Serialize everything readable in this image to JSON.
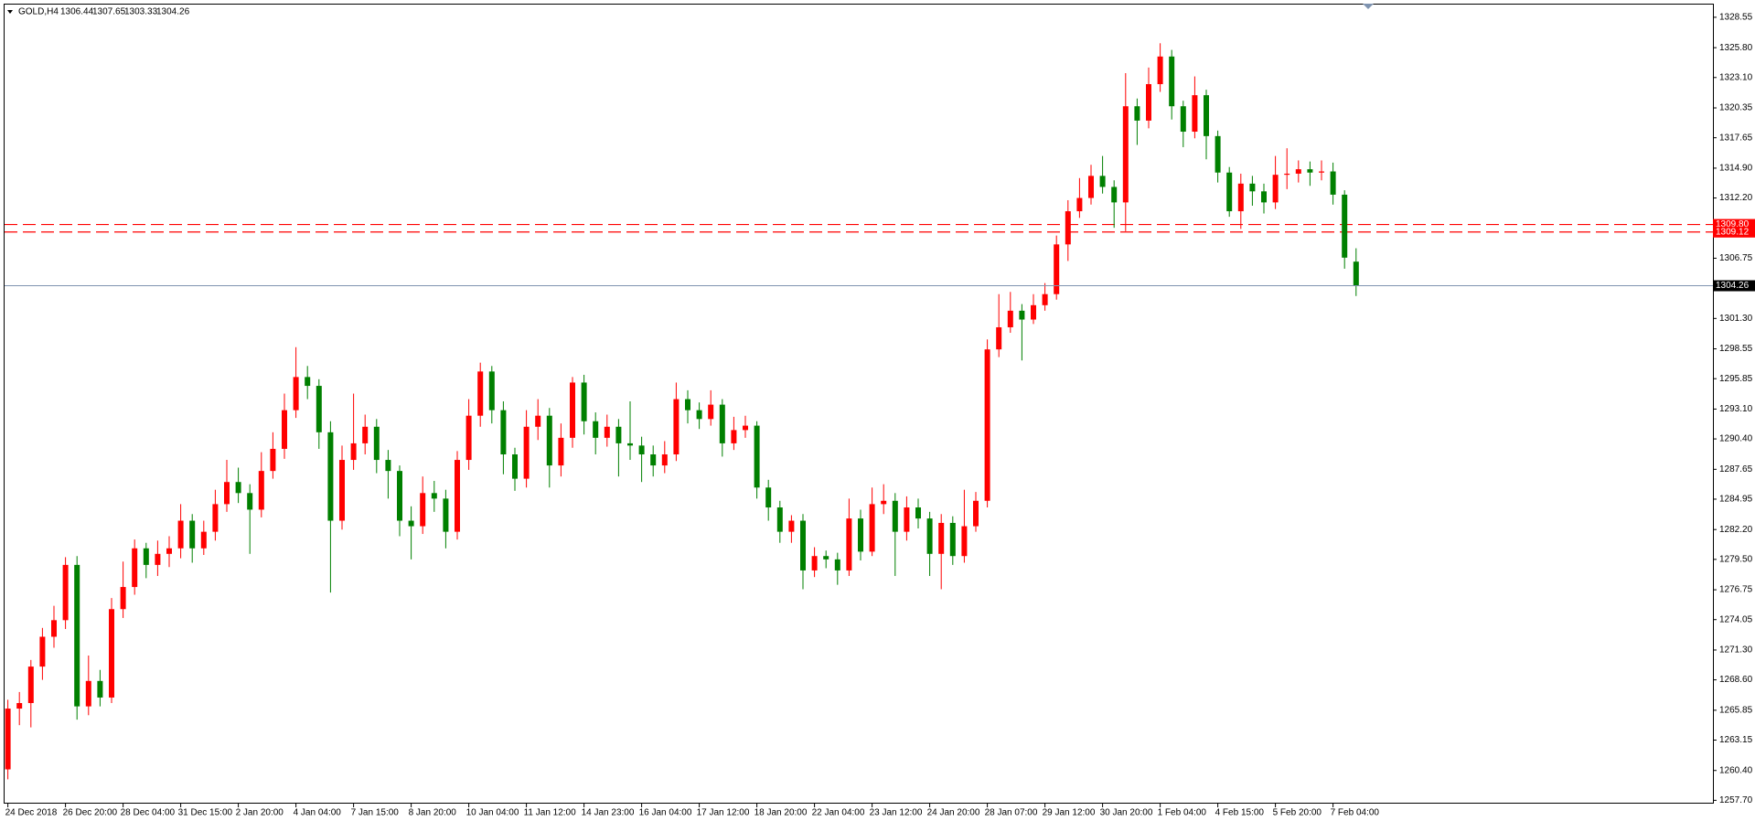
{
  "chart_data": {
    "type": "candlestick",
    "title": "GOLD,H4",
    "categories": [
      "24 Dec 2018",
      null,
      null,
      null,
      null,
      "26 Dec 20:00",
      null,
      null,
      null,
      null,
      "28 Dec 04:00",
      null,
      null,
      null,
      null,
      "31 Dec 15:00",
      null,
      null,
      null,
      null,
      "2 Jan 20:00",
      null,
      null,
      null,
      null,
      "4 Jan 04:00",
      null,
      null,
      null,
      null,
      "7 Jan 15:00",
      null,
      null,
      null,
      null,
      "8 Jan 20:00",
      null,
      null,
      null,
      null,
      "10 Jan 04:00",
      null,
      null,
      null,
      null,
      "11 Jan 12:00",
      null,
      null,
      null,
      null,
      "14 Jan 23:00",
      null,
      null,
      null,
      null,
      "16 Jan 04:00",
      null,
      null,
      null,
      null,
      "17 Jan 12:00",
      null,
      null,
      null,
      null,
      "18 Jan 20:00",
      null,
      null,
      null,
      null,
      "22 Jan 04:00",
      null,
      null,
      null,
      null,
      "23 Jan 12:00",
      null,
      null,
      null,
      null,
      "24 Jan 20:00",
      null,
      null,
      null,
      null,
      "28 Jan 07:00",
      null,
      null,
      null,
      null,
      "29 Jan 12:00",
      null,
      null,
      null,
      null,
      "30 Jan 20:00",
      null,
      null,
      null,
      null,
      "1 Feb 04:00",
      null,
      null,
      null,
      null,
      "4 Feb 15:00",
      null,
      null,
      null,
      null,
      "5 Feb 20:00",
      null,
      null,
      null,
      null,
      "7 Feb 04:00",
      null,
      null
    ],
    "open": [
      1260.5,
      1266.0,
      1266.5,
      1269.8,
      1272.5,
      1274.0,
      1279.0,
      1266.2,
      1268.5,
      1267.0,
      1275.0,
      1277.0,
      1280.5,
      1279.0,
      1280.0,
      1280.5,
      1283.0,
      1280.5,
      1282.0,
      1284.5,
      1286.5,
      1285.5,
      1284.0,
      1287.5,
      1289.5,
      1293.0,
      1296.0,
      1295.2,
      1291.0,
      1283.0,
      1288.5,
      1290.0,
      1291.5,
      1288.5,
      1287.5,
      1283.0,
      1282.5,
      1285.5,
      1285.0,
      1282.0,
      1288.5,
      1292.5,
      1296.5,
      1293.0,
      1289.0,
      1286.8,
      1291.5,
      1292.5,
      1288.0,
      1290.5,
      1295.5,
      1292.0,
      1290.5,
      1291.5,
      1290.0,
      1289.8,
      1289.0,
      1288.0,
      1289.0,
      1294.0,
      1293.0,
      1292.2,
      1293.5,
      1290.0,
      1291.2,
      1291.6,
      1286.0,
      1284.2,
      1282.0,
      1283.0,
      1278.5,
      1279.8,
      1279.5,
      1278.5,
      1283.2,
      1280.2,
      1284.5,
      1284.8,
      1282.0,
      1284.2,
      1283.2,
      1280.0,
      1282.8,
      1279.8,
      1282.5,
      1284.8,
      1298.5,
      1300.5,
      1302.0,
      1301.2,
      1302.5,
      1303.5,
      1308.0,
      1311.0,
      1312.2,
      1314.2,
      1313.2,
      1311.8,
      1320.5,
      1319.2,
      1322.5,
      1325.0,
      1320.5,
      1318.2,
      1321.5,
      1317.8,
      1314.5,
      1311.0,
      1313.5,
      1312.8,
      1311.8,
      1314.3,
      1314.4,
      1314.8,
      1314.5,
      1314.6,
      1312.5,
      1306.44
    ],
    "high": [
      1266.8,
      1267.5,
      1270.4,
      1273.3,
      1275.3,
      1279.7,
      1279.8,
      1270.8,
      1269.5,
      1276.0,
      1279.3,
      1281.3,
      1281.0,
      1281.2,
      1281.6,
      1284.5,
      1283.6,
      1283.0,
      1285.8,
      1288.5,
      1287.8,
      1286.3,
      1289.2,
      1291.0,
      1294.5,
      1298.7,
      1297.0,
      1295.8,
      1292.0,
      1289.8,
      1294.5,
      1292.6,
      1292.2,
      1289.4,
      1288.0,
      1284.3,
      1287.0,
      1286.6,
      1285.8,
      1289.3,
      1294.0,
      1297.3,
      1297.0,
      1293.8,
      1289.6,
      1293.0,
      1294.0,
      1293.2,
      1291.8,
      1296.0,
      1296.2,
      1292.8,
      1292.6,
      1292.2,
      1293.8,
      1290.6,
      1289.8,
      1290.2,
      1295.5,
      1294.8,
      1293.7,
      1294.8,
      1294.0,
      1292.4,
      1292.5,
      1292.0,
      1286.7,
      1284.8,
      1283.5,
      1283.6,
      1280.6,
      1280.3,
      1280.1,
      1285.0,
      1284.0,
      1286.0,
      1286.3,
      1285.5,
      1285.2,
      1285.0,
      1283.8,
      1283.6,
      1283.4,
      1285.8,
      1285.6,
      1299.4,
      1303.5,
      1303.7,
      1302.6,
      1303.5,
      1304.5,
      1308.8,
      1312.0,
      1314.0,
      1315.2,
      1316.0,
      1313.8,
      1323.5,
      1321.2,
      1324.0,
      1326.2,
      1325.6,
      1321.0,
      1323.2,
      1322.0,
      1318.3,
      1315.0,
      1314.4,
      1314.2,
      1313.5,
      1316.0,
      1316.7,
      1315.6,
      1315.5,
      1315.6,
      1315.4,
      1312.9,
      1307.65
    ],
    "low": [
      1259.6,
      1264.5,
      1264.3,
      1268.6,
      1271.5,
      1273.2,
      1265.0,
      1265.4,
      1266.2,
      1266.5,
      1274.2,
      1276.3,
      1277.8,
      1278.0,
      1278.8,
      1279.6,
      1279.2,
      1279.9,
      1281.2,
      1283.8,
      1284.6,
      1280.0,
      1283.3,
      1286.8,
      1288.6,
      1292.3,
      1294.0,
      1289.5,
      1276.5,
      1282.2,
      1287.6,
      1289.0,
      1287.3,
      1285.0,
      1281.6,
      1279.5,
      1281.8,
      1283.8,
      1280.5,
      1281.3,
      1287.6,
      1291.5,
      1291.8,
      1287.2,
      1285.7,
      1286.0,
      1290.3,
      1286.0,
      1287.0,
      1289.6,
      1290.8,
      1289.0,
      1289.7,
      1287.0,
      1288.5,
      1286.5,
      1287.0,
      1287.3,
      1288.4,
      1291.8,
      1291.3,
      1291.6,
      1288.8,
      1289.4,
      1290.5,
      1285.0,
      1283.0,
      1281.0,
      1281.0,
      1276.8,
      1277.9,
      1278.7,
      1277.2,
      1278.0,
      1279.4,
      1279.8,
      1283.6,
      1278.0,
      1281.2,
      1282.3,
      1278.0,
      1276.8,
      1279.0,
      1279.2,
      1282.0,
      1284.2,
      1297.8,
      1300.0,
      1297.5,
      1300.8,
      1302.0,
      1303.0,
      1306.5,
      1310.4,
      1311.6,
      1312.6,
      1309.5,
      1309.2,
      1317.0,
      1318.5,
      1321.8,
      1319.3,
      1316.8,
      1317.6,
      1315.7,
      1313.6,
      1310.5,
      1309.4,
      1311.5,
      1310.8,
      1311.2,
      1313.0,
      1313.6,
      1313.3,
      1313.8,
      1311.6,
      1305.8,
      1303.33
    ],
    "close": [
      1266.0,
      1266.5,
      1269.8,
      1272.5,
      1274.0,
      1279.0,
      1266.2,
      1268.5,
      1267.0,
      1275.0,
      1277.0,
      1280.5,
      1279.0,
      1280.0,
      1280.5,
      1283.0,
      1280.5,
      1282.0,
      1284.5,
      1286.5,
      1285.5,
      1284.0,
      1287.5,
      1289.5,
      1293.0,
      1296.0,
      1295.2,
      1291.0,
      1283.0,
      1288.5,
      1290.0,
      1291.5,
      1288.5,
      1287.5,
      1283.0,
      1282.5,
      1285.5,
      1285.0,
      1282.0,
      1288.5,
      1292.5,
      1296.5,
      1293.0,
      1289.0,
      1286.8,
      1291.5,
      1292.5,
      1288.0,
      1290.5,
      1295.5,
      1292.0,
      1290.5,
      1291.5,
      1290.0,
      1289.8,
      1289.0,
      1288.0,
      1289.0,
      1294.0,
      1293.0,
      1292.2,
      1293.5,
      1290.0,
      1291.2,
      1291.6,
      1286.0,
      1284.2,
      1282.0,
      1283.0,
      1278.5,
      1279.8,
      1279.5,
      1278.5,
      1283.2,
      1280.2,
      1284.5,
      1284.8,
      1282.0,
      1284.2,
      1283.2,
      1280.0,
      1282.8,
      1279.8,
      1282.5,
      1284.8,
      1298.5,
      1300.5,
      1302.0,
      1301.2,
      1302.5,
      1303.5,
      1308.0,
      1311.0,
      1312.2,
      1314.2,
      1313.2,
      1311.8,
      1320.5,
      1319.2,
      1322.5,
      1325.0,
      1320.5,
      1318.2,
      1321.5,
      1317.8,
      1314.5,
      1311.0,
      1313.5,
      1312.8,
      1311.8,
      1314.3,
      1314.4,
      1314.8,
      1314.5,
      1314.6,
      1312.5,
      1306.8,
      1304.26
    ],
    "up_color": "#ff0000",
    "down_color": "#008000",
    "price_line_color": "#7f93b0",
    "ylim": [
      1257.4,
      1329.7
    ],
    "yticks": [
      1328.55,
      {
        "value": 1325.8,
        "label": "1325.80"
      },
      {
        "value": 1323.1,
        "label": "1323.10"
      },
      1320.35,
      1317.65,
      {
        "value": 1314.9,
        "label": "1314.90"
      },
      {
        "value": 1312.2,
        "label": "1312.20"
      },
      1306.75,
      {
        "value": 1301.3,
        "label": "1301.30"
      },
      1298.55,
      1295.85,
      {
        "value": 1293.1,
        "label": "1293.10"
      },
      {
        "value": 1290.4,
        "label": "1290.40"
      },
      1287.65,
      1284.95,
      {
        "value": 1282.2,
        "label": "1282.20"
      },
      {
        "value": 1279.5,
        "label": "1279.50"
      },
      1276.75,
      1274.05,
      {
        "value": 1271.3,
        "label": "1271.30"
      },
      {
        "value": 1268.6,
        "label": "1268.60"
      },
      1265.85,
      1263.15,
      {
        "value": 1260.4,
        "label": "1260.40"
      },
      {
        "value": 1257.7,
        "label": "1257.70"
      }
    ],
    "hlines": [
      {
        "value": 1309.8,
        "label": "1309.80",
        "color": "#ff0000"
      },
      {
        "value": 1309.12,
        "label": "1309.12",
        "color": "#ff0000"
      }
    ],
    "grid": false
  }
}
